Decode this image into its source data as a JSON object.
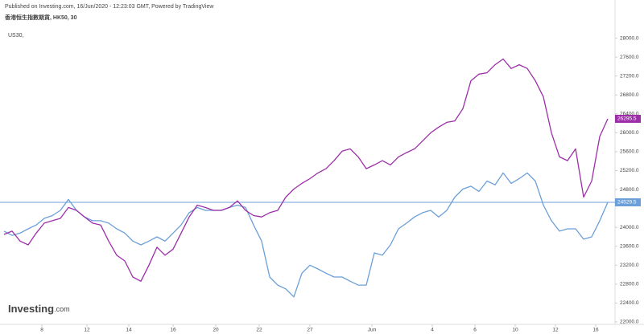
{
  "chart_data": {
    "type": "line",
    "title": "Published on Investing.com, 16/Jun/2020 - 12:23:03 GMT, Powered by TradingView",
    "logo": "Investing",
    "logo_suffix": ".com",
    "xlim": [
      0,
      75.5
    ],
    "xticks": [
      {
        "value": 4.7,
        "label": "8"
      },
      {
        "value": 10.3,
        "label": "12"
      },
      {
        "value": 15.5,
        "label": "14"
      },
      {
        "value": 21,
        "label": "16"
      },
      {
        "value": 26.3,
        "label": "20"
      },
      {
        "value": 31.7,
        "label": "22"
      },
      {
        "value": 38,
        "label": "27"
      },
      {
        "value": 45.7,
        "label": "Jun"
      },
      {
        "value": 53.2,
        "label": "4"
      },
      {
        "value": 58.5,
        "label": "6"
      },
      {
        "value": 63.5,
        "label": "10"
      },
      {
        "value": 68.5,
        "label": "12"
      },
      {
        "value": 73.5,
        "label": "16"
      }
    ],
    "ylim": [
      22000,
      28400
    ],
    "yticks": [
      {
        "value": 22000,
        "label": "22000.0"
      },
      {
        "value": 22400,
        "label": "22400.0"
      },
      {
        "value": 22800,
        "label": "22800.0"
      },
      {
        "value": 23200,
        "label": "23200.0"
      },
      {
        "value": 23600,
        "label": "23600.0"
      },
      {
        "value": 24000,
        "label": "24000.0"
      },
      {
        "value": 24800,
        "label": "24800.0"
      },
      {
        "value": 25200,
        "label": "25200.0"
      },
      {
        "value": 25600,
        "label": "25600.0"
      },
      {
        "value": 26000,
        "label": "26000.0"
      },
      {
        "value": 26400,
        "label": "26400.0"
      },
      {
        "value": 26800,
        "label": "26800.0"
      },
      {
        "value": 27200,
        "label": "27200.0"
      },
      {
        "value": 27600,
        "label": "27600.0"
      },
      {
        "value": 28000,
        "label": "28000.0"
      }
    ],
    "series": [
      {
        "name": "香港恒生指數期貨, HK50, 30",
        "color": "#9c2fa8",
        "values": [
          23850,
          23920,
          23710,
          23630,
          23880,
          24090,
          24140,
          24190,
          24420,
          24360,
          24220,
          24090,
          24050,
          23710,
          23410,
          23290,
          22950,
          22860,
          23200,
          23580,
          23410,
          23540,
          23880,
          24220,
          24470,
          24420,
          24360,
          24360,
          24420,
          24560,
          24360,
          24250,
          24220,
          24310,
          24360,
          24640,
          24810,
          24930,
          25030,
          25150,
          25240,
          25410,
          25610,
          25660,
          25490,
          25240,
          25320,
          25410,
          25320,
          25490,
          25580,
          25660,
          25830,
          26000,
          26120,
          26220,
          26250,
          26510,
          27100,
          27240,
          27270,
          27440,
          27560,
          27360,
          27440,
          27360,
          27100,
          26760,
          26000,
          25490,
          25410,
          25660,
          24640,
          24980,
          25920,
          26295.5
        ]
      },
      {
        "name": "US30,",
        "color": "#6b9fd8",
        "values": [
          23920,
          23830,
          23880,
          23970,
          24050,
          24190,
          24250,
          24360,
          24590,
          24360,
          24220,
          24140,
          24140,
          24090,
          23970,
          23880,
          23710,
          23630,
          23710,
          23800,
          23710,
          23880,
          24050,
          24310,
          24420,
          24360,
          24360,
          24360,
          24420,
          24470,
          24420,
          24050,
          23710,
          22950,
          22780,
          22700,
          22530,
          23030,
          23200,
          23120,
          23030,
          22950,
          22950,
          22860,
          22780,
          22780,
          23460,
          23410,
          23630,
          23970,
          24090,
          24220,
          24310,
          24360,
          24220,
          24360,
          24640,
          24810,
          24870,
          24760,
          24980,
          24900,
          25150,
          24930,
          25030,
          25150,
          24980,
          24470,
          24140,
          23920,
          23970,
          23970,
          23750,
          23800,
          24140,
          24529.5
        ]
      }
    ]
  }
}
